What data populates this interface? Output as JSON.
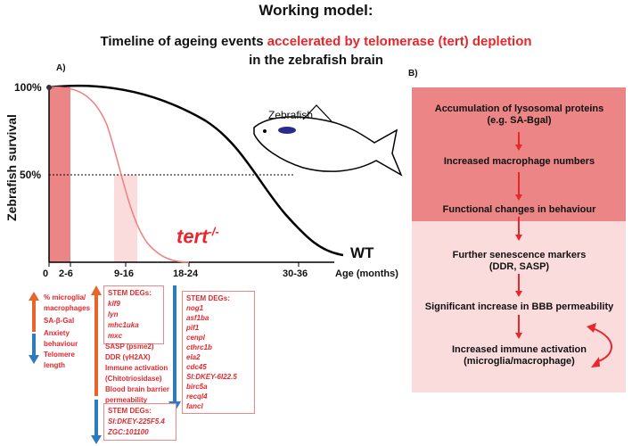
{
  "title": "Working model:",
  "subtitle_plain": "Timeline of ageing events ",
  "subtitle_red": "accelerated by telomerase (tert) depletion",
  "subtitle_line2": "in the zebrafish brain",
  "panel_a": {
    "label": "A)",
    "ylabel": "Zebrafish survival",
    "yticks": [
      "100%",
      "50%"
    ],
    "xticks": [
      "0",
      "2-6",
      "9-16",
      "18-24",
      "30-36"
    ],
    "xlabel": "Age (months)",
    "tert_label": "tert",
    "tert_sup": "-/-",
    "wt_label": "WT",
    "fish_label": "Zebrafish"
  },
  "annotations": {
    "early": [
      "% microglia/",
      "macrophages",
      "SA-β-Gal",
      "Anxiety",
      "behaviour"
    ],
    "telomere": [
      "Telomere",
      "length"
    ],
    "stem_deg_up_title": "STEM DEGs:",
    "stem_deg_up": [
      "klf9",
      "lyn",
      "mhc1uka",
      "mxc"
    ],
    "middle": [
      "SASP (psme2)",
      "DDR (γH2AX)",
      "Immune activation",
      "(Chitotriosidase)",
      "Blood brain barrier",
      "permeability"
    ],
    "stem_deg_down_title": "STEM DEGs:",
    "stem_deg_down": [
      "SI:DKEY-225F5.4",
      "ZGC:101100"
    ],
    "stem_deg_late_title": "STEM DEGs:",
    "stem_deg_late": [
      "nog1",
      "asf1ba",
      "pif1",
      "cenpl",
      "cthrc1b",
      "ela2",
      "cdc45",
      "SI:DKEY-6I22.5",
      "birc5a",
      "recql4",
      "fancl"
    ]
  },
  "panel_b": {
    "label": "B)",
    "steps": [
      [
        "Accumulation of lysosomal proteins",
        "(e.g. SA-Bgal)"
      ],
      [
        "Increased macrophage numbers"
      ],
      [
        "Functional changes in behaviour"
      ],
      [
        "Further senescence markers",
        "(DDR, SASP)"
      ],
      [
        "Significant increase in BBB permeability"
      ],
      [
        "Increased immune activation",
        "(microglia/macrophage)"
      ]
    ]
  },
  "colors": {
    "red": "#e8262b",
    "orange": "#e8642b",
    "blue": "#2c7bbf",
    "dark_pink": "#ec8585",
    "light_pink": "#fbdcdc"
  }
}
